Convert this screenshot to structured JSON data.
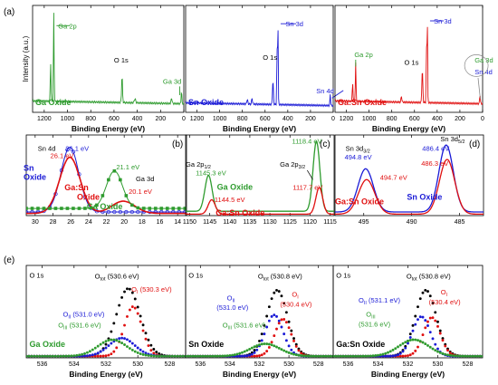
{
  "colors": {
    "green": "#2e9b2e",
    "blue": "#1a1ad6",
    "red": "#e01010",
    "black": "#000000",
    "panel_label": "#000000"
  },
  "chart_data": [
    {
      "id": "a1",
      "type": "line",
      "panel_label": "(a)",
      "xlabel": "Binding Energy (eV)",
      "ylabel": "Intensity (a.u.)",
      "xlim": [
        1300,
        0
      ],
      "xticks": [
        1200,
        1000,
        800,
        600,
        400,
        200,
        0
      ],
      "tick_labels": [
        "1200",
        "1000",
        "800",
        "600",
        "400",
        "200",
        "0"
      ],
      "sample": "Ga Oxide",
      "color": "green",
      "peaks": [
        [
          1118,
          0.92,
          3
        ],
        [
          1145,
          0.42,
          3
        ],
        [
          531,
          0.28,
          4
        ],
        [
          20,
          0.14,
          3
        ],
        [
          105,
          0.06,
          4
        ],
        [
          420,
          0.04,
          6
        ]
      ],
      "baseline": [
        0.12,
        0.03
      ],
      "annotations": [
        {
          "text": "Ga 2p",
          "color": "green",
          "x": 1080,
          "y": 0.88
        },
        {
          "text": "O 1s",
          "color": "black",
          "x": 600,
          "y": 0.52
        },
        {
          "text": "Ga 3d",
          "color": "green",
          "x": 180,
          "y": 0.3
        }
      ],
      "sample_label": {
        "text": "Ga Oxide",
        "color": "green"
      }
    },
    {
      "id": "a2",
      "type": "line",
      "xlabel": "Binding Energy (eV)",
      "xlim": [
        1300,
        0
      ],
      "xticks": [
        1200,
        1000,
        800,
        600,
        400,
        200,
        0
      ],
      "tick_labels": [
        "1200",
        "1000",
        "800",
        "600",
        "400",
        "200",
        "0"
      ],
      "sample": "Sn Oxide",
      "color": "blue",
      "peaks": [
        [
          487,
          0.98,
          2.5
        ],
        [
          495,
          0.6,
          2.5
        ],
        [
          531,
          0.25,
          4
        ],
        [
          26,
          0.12,
          3
        ],
        [
          715,
          0.06,
          4
        ],
        [
          757,
          0.05,
          4
        ]
      ],
      "baseline": [
        0.1,
        0.03
      ],
      "annotations": [
        {
          "text": "Sn 3d",
          "color": "blue",
          "x": 420,
          "y": 0.9
        },
        {
          "text": "O 1s",
          "color": "black",
          "x": 620,
          "y": 0.55
        },
        {
          "text": "Sn 4d",
          "color": "blue",
          "x": 150,
          "y": 0.2
        }
      ],
      "sample_label": {
        "text": "Sn Oxide",
        "color": "blue"
      }
    },
    {
      "id": "a3",
      "type": "line",
      "xlabel": "Binding Energy (eV)",
      "xlim": [
        1300,
        0
      ],
      "xticks": [
        1200,
        1000,
        800,
        600,
        400,
        200,
        0
      ],
      "tick_labels": [
        "1200",
        "1000",
        "800",
        "600",
        "400",
        "200",
        "0"
      ],
      "sample": "Ga:Sn Oxide",
      "color": "red",
      "peaks": [
        [
          487,
          1.0,
          2.5
        ],
        [
          495,
          0.6,
          2.5
        ],
        [
          1118,
          0.4,
          3
        ],
        [
          1145,
          0.2,
          3
        ],
        [
          531,
          0.35,
          4
        ],
        [
          23,
          0.1,
          3
        ],
        [
          715,
          0.06,
          4
        ]
      ],
      "baseline": [
        0.12,
        0.03
      ],
      "annotations": [
        {
          "text": "Sn 3d",
          "color": "blue",
          "x": 430,
          "y": 0.93
        },
        {
          "text": "Ga 2p",
          "color": "green",
          "x": 1130,
          "y": 0.58
        },
        {
          "text": "O 1s",
          "color": "black",
          "x": 690,
          "y": 0.5
        },
        {
          "text": "Ga 3d",
          "color": "green",
          "x": 70,
          "y": 0.52
        },
        {
          "text": "Sn 4d",
          "color": "blue",
          "x": 70,
          "y": 0.4
        }
      ],
      "sample_label": {
        "text": "Ga:Sn Oxide",
        "color": "red"
      }
    },
    {
      "id": "b",
      "type": "line",
      "panel_label": "(b)",
      "xlabel": "",
      "xlim": [
        31,
        13
      ],
      "xticks": [
        30,
        28,
        26,
        24,
        22,
        20,
        18,
        16,
        14
      ],
      "tick_labels": [
        "30",
        "28",
        "26",
        "24",
        "22",
        "20",
        "18",
        "16",
        "14"
      ],
      "series": [
        {
          "name": "Sn Oxide",
          "color": "blue",
          "marker": "circle",
          "peaks": [
            [
              26.1,
              0.9,
              1.0
            ]
          ],
          "baseline": 0.05
        },
        {
          "name": "Ga:Sn Oxide",
          "color": "red",
          "marker": "none",
          "peaks": [
            [
              26.1,
              0.78,
              1.15
            ],
            [
              20.1,
              0.17,
              1.3
            ]
          ],
          "baseline": 0.03
        },
        {
          "name": "Ga Oxide",
          "color": "green",
          "marker": "square",
          "peaks": [
            [
              21.1,
              0.52,
              0.9
            ]
          ],
          "baseline": 0.1
        }
      ],
      "annotations": [
        {
          "text": "Sn 4d",
          "color": "black",
          "x": 29.7,
          "y": 0.9
        },
        {
          "text": "26.1 eV",
          "color": "blue",
          "x": 26.6,
          "y": 0.9
        },
        {
          "text": "26.1 eV",
          "color": "red",
          "x": 28.3,
          "y": 0.8
        },
        {
          "text": "21.1 eV",
          "color": "green",
          "x": 20.9,
          "y": 0.64
        },
        {
          "text": "Ga 3d",
          "color": "black",
          "x": 18.7,
          "y": 0.48
        },
        {
          "text": "20.1 eV",
          "color": "red",
          "x": 19.5,
          "y": 0.3
        },
        {
          "text": "Sn",
          "color": "blue",
          "x": 31.3,
          "y": 0.62
        },
        {
          "text": "Oxide",
          "color": "blue",
          "x": 31.3,
          "y": 0.5
        },
        {
          "text": "Ga:Sn",
          "color": "red",
          "x": 26.7,
          "y": 0.35
        },
        {
          "text": "Oxide",
          "color": "red",
          "x": 25.3,
          "y": 0.22
        },
        {
          "text": "Ga Oxide",
          "color": "green",
          "x": 24.2,
          "y": 0.09
        }
      ]
    },
    {
      "id": "c",
      "type": "line",
      "panel_label": "(c)",
      "xlabel": "",
      "xlim": [
        1151,
        1114
      ],
      "xticks": [
        1150,
        1145,
        1140,
        1135,
        1130,
        1125,
        1120,
        1115
      ],
      "tick_labels": [
        "1150",
        "1145",
        "1140",
        "1135",
        "1130",
        "1125",
        "1120",
        "1115"
      ],
      "series": [
        {
          "name": "Ga Oxide",
          "color": "green",
          "marker": "none",
          "peaks": [
            [
              1145.3,
              0.5,
              0.9
            ],
            [
              1118.4,
              0.97,
              0.85
            ]
          ],
          "baseline": 0.06
        },
        {
          "name": "Ga:Sn Oxide",
          "color": "red",
          "marker": "none",
          "peaks": [
            [
              1144.5,
              0.2,
              0.9
            ],
            [
              1117.7,
              0.37,
              0.85
            ]
          ],
          "baseline": 0.02
        }
      ],
      "annotations": [
        {
          "text": "Ga 2p1/2",
          "color": "black",
          "x": 1151,
          "y": 0.68
        },
        {
          "text": "1145.3 eV",
          "color": "green",
          "x": 1148.5,
          "y": 0.56
        },
        {
          "text": "Ga 2p3/2",
          "color": "black",
          "x": 1127.5,
          "y": 0.68
        },
        {
          "text": "1118.4 eV",
          "color": "green",
          "x": 1124.5,
          "y": 1.0
        },
        {
          "text": "Ga Oxide",
          "color": "green",
          "x": 1143.2,
          "y": 0.36
        },
        {
          "text": "1144.5 eV",
          "color": "red",
          "x": 1143.8,
          "y": 0.19
        },
        {
          "text": "1117.7 eV",
          "color": "red",
          "x": 1124.3,
          "y": 0.36
        },
        {
          "text": "Ga:Sn Oxide",
          "color": "red",
          "x": 1143.5,
          "y": 0.0
        }
      ]
    },
    {
      "id": "d",
      "type": "line",
      "panel_label": "(d)",
      "xlabel": "",
      "xlim": [
        498,
        482.5
      ],
      "xticks": [
        495,
        490,
        485
      ],
      "tick_labels": [
        "495",
        "490",
        "485"
      ],
      "series": [
        {
          "name": "Sn Oxide",
          "color": "blue",
          "marker": "none",
          "peaks": [
            [
              494.8,
              0.6,
              0.8
            ],
            [
              486.4,
              0.93,
              0.75
            ]
          ],
          "baseline": 0.05
        },
        {
          "name": "Ga:Sn Oxide",
          "color": "red",
          "marker": "none",
          "peaks": [
            [
              494.7,
              0.48,
              0.85
            ],
            [
              486.3,
              0.76,
              0.8
            ]
          ],
          "baseline": 0.02
        }
      ],
      "annotations": [
        {
          "text": "Sn 3d3/2",
          "color": "black",
          "x": 496.9,
          "y": 0.9
        },
        {
          "text": "494.8 eV",
          "color": "blue",
          "x": 497,
          "y": 0.78
        },
        {
          "text": "494.7 eV",
          "color": "red",
          "x": 493.3,
          "y": 0.5
        },
        {
          "text": "Sn 3d5/2",
          "color": "black",
          "x": 487,
          "y": 1.03
        },
        {
          "text": "486.4 eV",
          "color": "blue",
          "x": 488.9,
          "y": 0.9
        },
        {
          "text": "486.3 eV",
          "color": "red",
          "x": 489,
          "y": 0.69
        },
        {
          "text": "Ga:Sn Oxide",
          "color": "red",
          "x": 498,
          "y": 0.16
        },
        {
          "text": "Sn Oxide",
          "color": "blue",
          "x": 490.5,
          "y": 0.22
        }
      ]
    },
    {
      "id": "e1",
      "type": "scatter",
      "panel_label": "(e)",
      "xlabel": "Binding Energy (eV)",
      "xlim": [
        537,
        527
      ],
      "xticks": [
        536,
        534,
        532,
        530,
        528
      ],
      "tick_labels": [
        "536",
        "534",
        "532",
        "530",
        "528"
      ],
      "series": [
        {
          "name": "Otot",
          "color": "black",
          "marker": "circle",
          "peaks": [
            [
              530.6,
              0.82,
              0.75
            ]
          ],
          "baseline": 0.02
        },
        {
          "name": "OI",
          "color": "red",
          "marker": "circle",
          "peaks": [
            [
              530.3,
              0.6,
              0.55
            ]
          ],
          "baseline": 0.02
        },
        {
          "name": "OII",
          "color": "blue",
          "marker": "circle",
          "peaks": [
            [
              531.0,
              0.22,
              0.8
            ]
          ],
          "baseline": 0.02
        },
        {
          "name": "OIII",
          "color": "green",
          "marker": "circle",
          "peaks": [
            [
              531.6,
              0.2,
              0.9
            ]
          ],
          "baseline": 0.02
        }
      ],
      "annotations": [
        {
          "text": "O 1s",
          "color": "black",
          "x": 536.8,
          "y": 0.97
        },
        {
          "text": "Otot (530.6 eV)",
          "color": "black",
          "x": 532.7,
          "y": 0.96
        },
        {
          "text": "OI (530.3 eV)",
          "color": "red",
          "x": 530.4,
          "y": 0.8
        },
        {
          "text": "OII (531.0 eV)",
          "color": "blue",
          "x": 534.7,
          "y": 0.5
        },
        {
          "text": "OIII (531.6 eV)",
          "color": "green",
          "x": 535.0,
          "y": 0.37
        },
        {
          "text": "Ga Oxide",
          "color": "green",
          "x": 536.8,
          "y": 0.13
        }
      ]
    },
    {
      "id": "e2",
      "type": "scatter",
      "xlabel": "Binding Energy (eV)",
      "xlim": [
        537,
        527
      ],
      "xticks": [
        536,
        534,
        532,
        530,
        528
      ],
      "tick_labels": [
        "536",
        "534",
        "532",
        "530",
        "528"
      ],
      "series": [
        {
          "name": "Otot",
          "color": "black",
          "marker": "circle",
          "peaks": [
            [
              530.8,
              0.8,
              0.7
            ]
          ],
          "baseline": 0.02
        },
        {
          "name": "OI",
          "color": "red",
          "marker": "circle",
          "peaks": [
            [
              530.4,
              0.45,
              0.55
            ]
          ],
          "baseline": 0.02
        },
        {
          "name": "OII",
          "color": "blue",
          "marker": "circle",
          "peaks": [
            [
              531.0,
              0.5,
              0.6
            ]
          ],
          "baseline": 0.02
        },
        {
          "name": "OIII",
          "color": "green",
          "marker": "circle",
          "peaks": [
            [
              531.6,
              0.15,
              1.0
            ]
          ],
          "baseline": 0.02
        }
      ],
      "annotations": [
        {
          "text": "O 1s",
          "color": "black",
          "x": 536.8,
          "y": 0.97
        },
        {
          "text": "Otot (530.8 eV)",
          "color": "black",
          "x": 532.1,
          "y": 0.96
        },
        {
          "text": "OI",
          "color": "red",
          "x": 529.8,
          "y": 0.74
        },
        {
          "text": "(530.4 eV)",
          "color": "red",
          "x": 530.6,
          "y": 0.62
        },
        {
          "text": "OII",
          "color": "blue",
          "x": 534.2,
          "y": 0.7
        },
        {
          "text": "(531.0 eV)",
          "color": "blue",
          "x": 534.9,
          "y": 0.58
        },
        {
          "text": "OIII (531.6 eV)",
          "color": "green",
          "x": 534.5,
          "y": 0.37
        },
        {
          "text": "Sn Oxide",
          "color": "black",
          "x": 536.8,
          "y": 0.13
        }
      ]
    },
    {
      "id": "e3",
      "type": "scatter",
      "xlabel": "Binding Energy (eV)",
      "xlim": [
        537,
        527
      ],
      "xticks": [
        536,
        534,
        532,
        530,
        528
      ],
      "tick_labels": [
        "536",
        "534",
        "532",
        "530",
        "528"
      ],
      "series": [
        {
          "name": "Otot",
          "color": "black",
          "marker": "circle",
          "peaks": [
            [
              530.8,
              0.8,
              0.7
            ]
          ],
          "baseline": 0.02
        },
        {
          "name": "OI",
          "color": "red",
          "marker": "circle",
          "peaks": [
            [
              530.4,
              0.47,
              0.55
            ]
          ],
          "baseline": 0.02
        },
        {
          "name": "OII",
          "color": "blue",
          "marker": "circle",
          "peaks": [
            [
              531.1,
              0.48,
              0.6
            ]
          ],
          "baseline": 0.02
        },
        {
          "name": "OIII",
          "color": "green",
          "marker": "circle",
          "peaks": [
            [
              531.6,
              0.2,
              1.0
            ]
          ],
          "baseline": 0.02
        }
      ],
      "annotations": [
        {
          "text": "O 1s",
          "color": "black",
          "x": 536.8,
          "y": 0.97
        },
        {
          "text": "Otot (530.8 eV)",
          "color": "black",
          "x": 532.1,
          "y": 0.96
        },
        {
          "text": "OI",
          "color": "red",
          "x": 529.8,
          "y": 0.77
        },
        {
          "text": "(530.4 eV)",
          "color": "red",
          "x": 530.6,
          "y": 0.65
        },
        {
          "text": "OII (531.1 eV)",
          "color": "blue",
          "x": 535.3,
          "y": 0.67
        },
        {
          "text": "OIII",
          "color": "green",
          "x": 534.8,
          "y": 0.5
        },
        {
          "text": "(531.6 eV)",
          "color": "green",
          "x": 535.3,
          "y": 0.38
        },
        {
          "text": "Ga:Sn Oxide",
          "color": "black",
          "x": 536.8,
          "y": 0.13
        }
      ]
    }
  ]
}
